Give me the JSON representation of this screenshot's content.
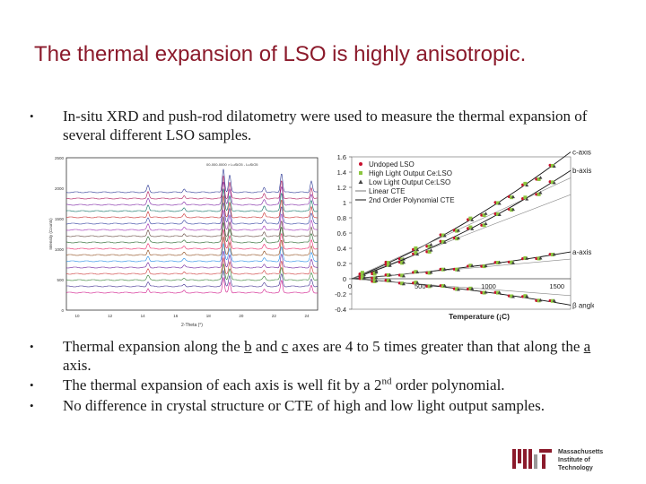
{
  "title": "The thermal expansion of LSO is highly anisotropic.",
  "bullet_top": {
    "symbol": "•",
    "text": "In-situ XRD and push-rod dilatometry were used to measure the thermal expansion of several different LSO samples."
  },
  "bullets_bottom": [
    {
      "symbol": "•",
      "pre": "Thermal expansion along the ",
      "b": "b",
      "mid1": " and ",
      "c": "c",
      "mid2": " axes are 4 to 5 times greater than that along the ",
      "a": "a",
      "post": " axis."
    },
    {
      "symbol": "•",
      "pre": "The thermal expansion of each axis is well fit by a 2",
      "sup": "nd",
      "post": " order polynomial."
    },
    {
      "symbol": "•",
      "text": "No difference in crystal structure or CTE of high and low light output samples."
    }
  ],
  "logo": {
    "lines": [
      "Massachusetts",
      "Institute of",
      "Technology"
    ]
  },
  "chart_data": [
    {
      "type": "line",
      "description_label": "XRD waterfall",
      "title": "",
      "ylabel": "Intensity (Counts)",
      "xlabel": "2-Theta (°)",
      "header_text": "00-000-0000 > LuSiO5 - LuSiO5",
      "yticks": [
        "2500",
        "2000",
        "1500",
        "1000",
        "500",
        "0"
      ],
      "xticks": [
        "10",
        "12",
        "14",
        "16",
        "18",
        "20",
        "22",
        "24"
      ],
      "xlim": [
        9,
        25
      ],
      "ylim": [
        0,
        2500
      ],
      "peaks": [
        {
          "x": 14.2,
          "h": 120
        },
        {
          "x": 16.5,
          "h": 60
        },
        {
          "x": 19.0,
          "h": 420
        },
        {
          "x": 19.4,
          "h": 300
        },
        {
          "x": 21.6,
          "h": 90
        },
        {
          "x": 22.7,
          "h": 340
        },
        {
          "x": 24.6,
          "h": 200
        }
      ],
      "series_count": 17
    },
    {
      "type": "scatter",
      "title": "",
      "xlabel": "Temperature (¡C)",
      "ylabel": "",
      "xlim": [
        0,
        1600
      ],
      "ylim": [
        -0.4,
        1.6
      ],
      "xticks": [
        "500",
        "1000",
        "1500"
      ],
      "xtick_values": [
        500,
        1000,
        1500
      ],
      "yticks": [
        "1.6",
        "1.4",
        "1.2",
        "1",
        "0.8",
        "0.6",
        "0.4",
        "0.2",
        "0",
        "-0.2",
        "-0.4"
      ],
      "ytick_values": [
        1.6,
        1.4,
        1.2,
        1,
        0.8,
        0.6,
        0.4,
        0.2,
        0,
        -0.2,
        -0.4
      ],
      "legend": [
        {
          "label": "Undoped LSO",
          "marker": "circle",
          "color": "#c8102e"
        },
        {
          "label": "High Light Output Ce:LSO",
          "marker": "square",
          "color": "#8cc63f"
        },
        {
          "label": "Low Light Output Ce:LSO",
          "marker": "triangle",
          "color": "#444444"
        },
        {
          "label": "Linear CTE",
          "marker": "line",
          "color": "#777777"
        },
        {
          "label": "2nd Order Polynomial CTE",
          "marker": "line",
          "color": "#111111"
        }
      ],
      "series": [
        {
          "name": "c-axis",
          "label": "c-axis",
          "fit": [
            0,
            0.00072,
            2e-07
          ],
          "end_x": 1600
        },
        {
          "name": "b-axis",
          "label": "b-axis",
          "fit": [
            0,
            0.0006,
            1.8e-07
          ],
          "end_x": 1600
        },
        {
          "name": "a-axis",
          "label": "a-axis",
          "fit": [
            0,
            0.00014,
            5e-08
          ],
          "end_x": 1600
        },
        {
          "name": "beta angle",
          "label": "β angle",
          "fit": [
            0,
            -0.00012,
            -6e-08
          ],
          "end_x": 1600
        }
      ],
      "points_x": [
        60,
        150,
        250,
        350,
        450,
        550,
        650,
        750,
        850,
        950,
        1050,
        1150,
        1250,
        1350,
        1450
      ]
    }
  ]
}
